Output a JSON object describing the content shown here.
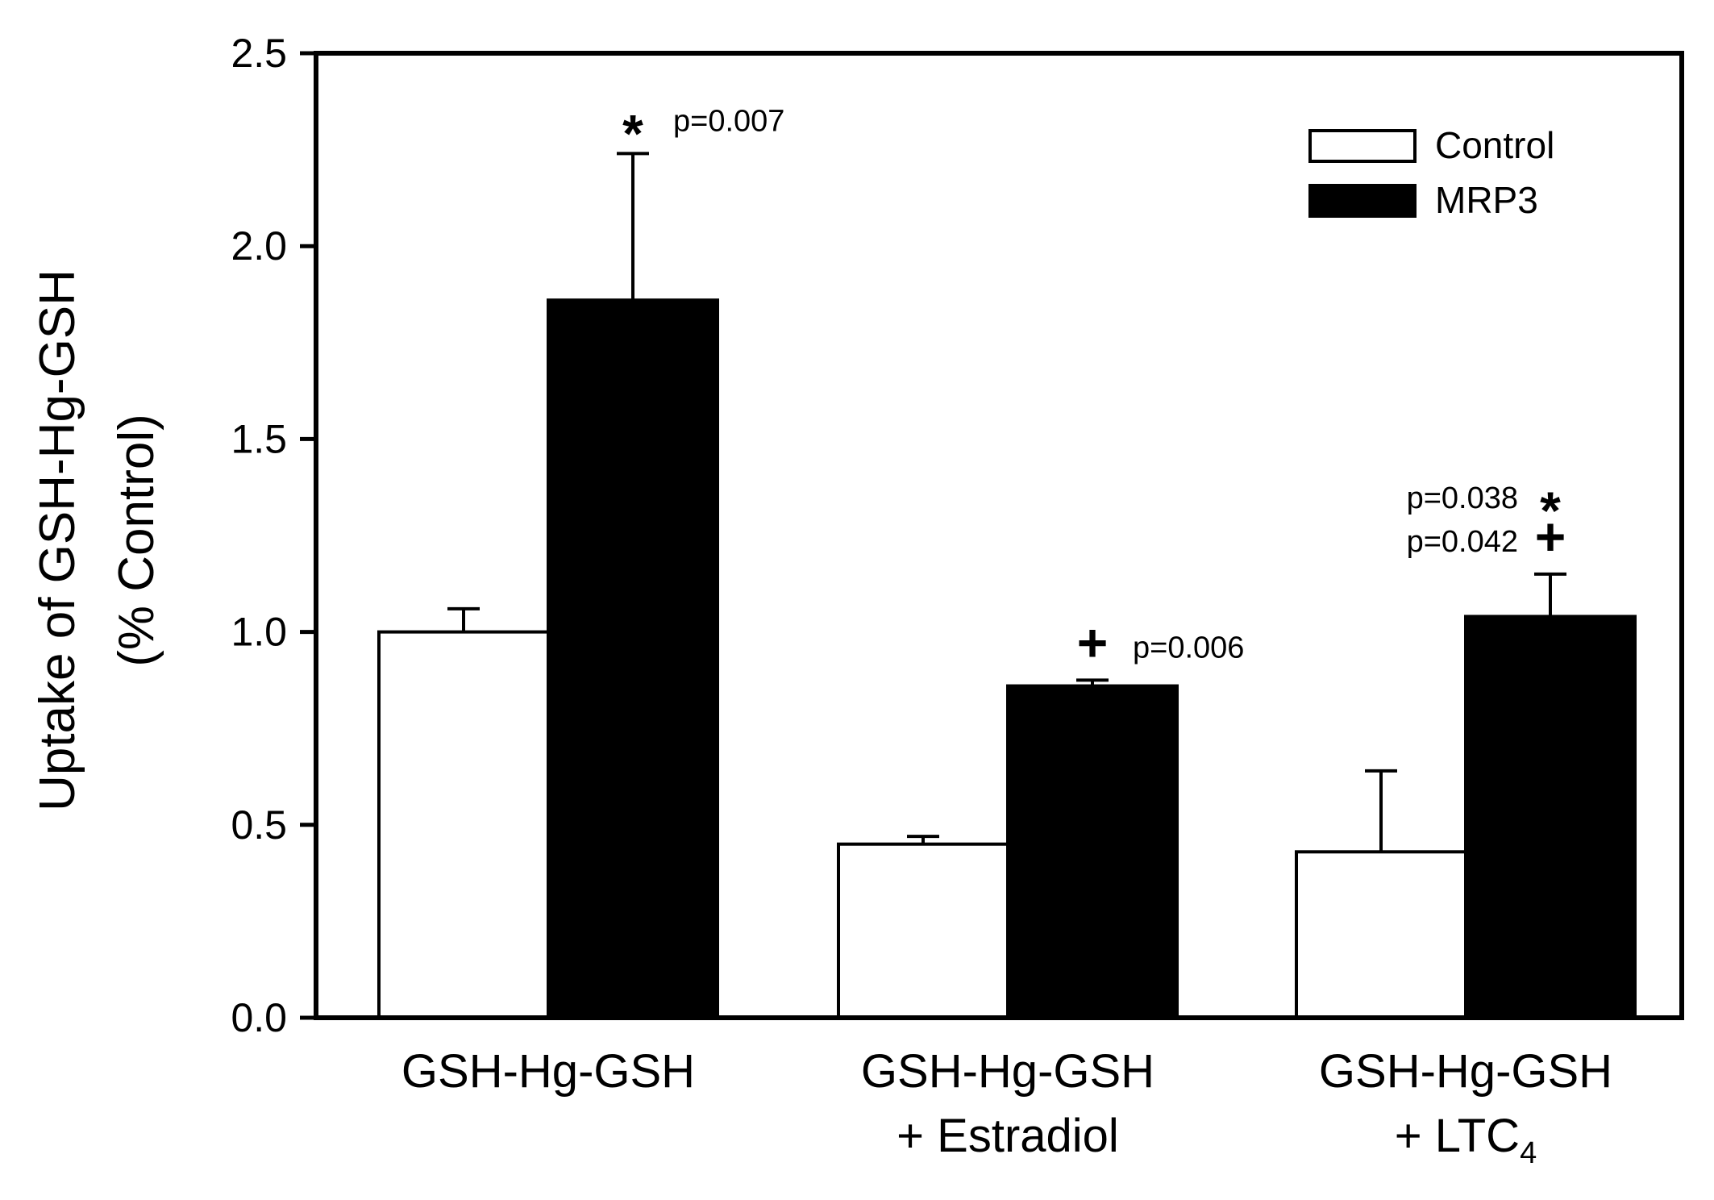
{
  "chart_data": {
    "type": "bar",
    "title": "",
    "xlabel": "",
    "ylabel": "Uptake of GSH-Hg-GSH",
    "ylabel_line2": "(% Control)",
    "ylim": [
      0,
      2.5
    ],
    "yticks": [
      "0.0",
      "0.5",
      "1.0",
      "1.5",
      "2.0",
      "2.5"
    ],
    "grid": false,
    "legend_position": "top-right",
    "categories": [
      {
        "line1": "GSH-Hg-GSH",
        "line2": "",
        "sub": ""
      },
      {
        "line1": "GSH-Hg-GSH",
        "line2": "+ Estradiol",
        "sub": ""
      },
      {
        "line1": "GSH-Hg-GSH",
        "line2": "+ LTC",
        "sub": "4"
      }
    ],
    "series": [
      {
        "name": "Control",
        "color": "#ffffff",
        "values": [
          1.0,
          0.45,
          0.43
        ],
        "errors": [
          0.06,
          0.02,
          0.21
        ]
      },
      {
        "name": "MRP3",
        "color": "#000000",
        "values": [
          1.86,
          0.86,
          1.04
        ],
        "errors": [
          0.38,
          0.015,
          0.11
        ]
      }
    ],
    "annotations": [
      {
        "category": 0,
        "marks": [
          {
            "symbol": "*",
            "p": "p=0.007",
            "side": "right"
          }
        ]
      },
      {
        "category": 1,
        "marks": [
          {
            "symbol": "+",
            "p": "p=0.006",
            "side": "right"
          }
        ]
      },
      {
        "category": 2,
        "marks": [
          {
            "symbol": "*",
            "p": "p=0.038",
            "side": "left"
          },
          {
            "symbol": "+",
            "p": "p=0.042",
            "side": "left"
          }
        ]
      }
    ]
  }
}
